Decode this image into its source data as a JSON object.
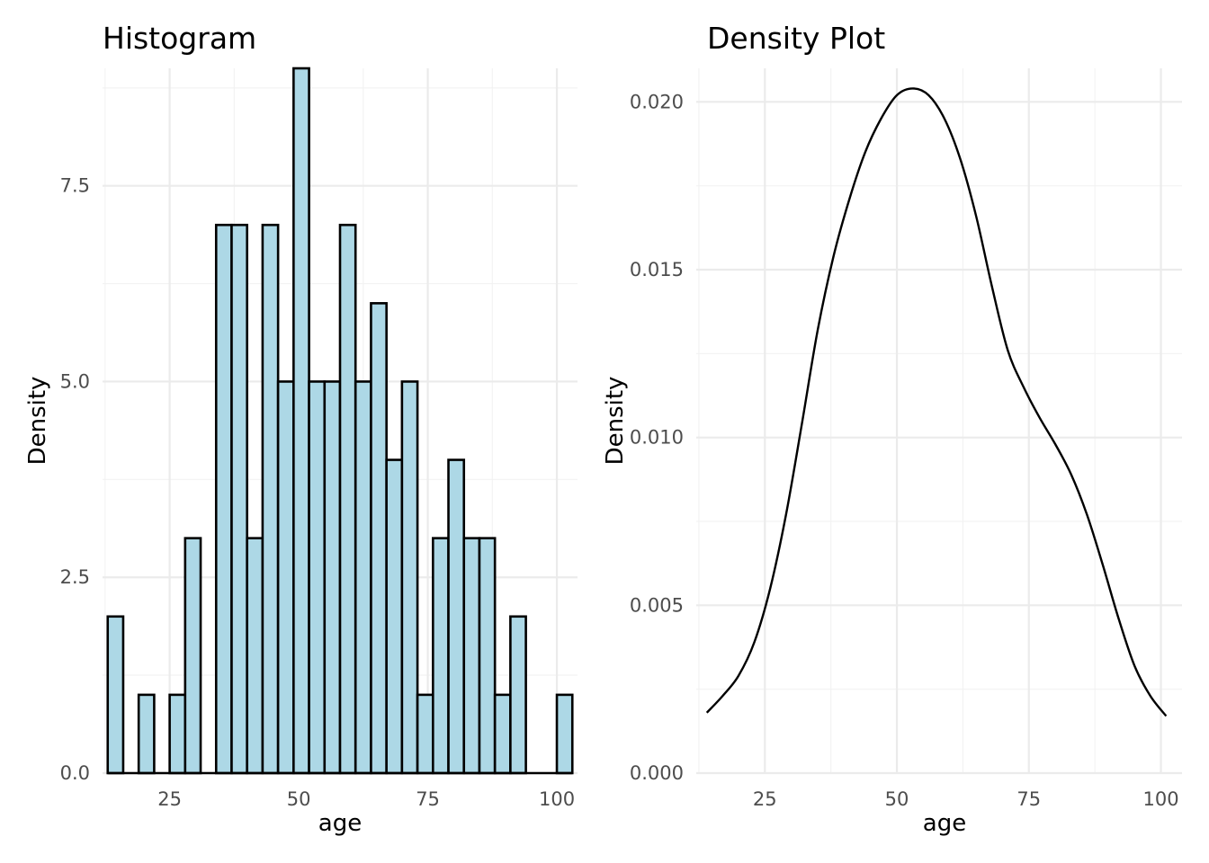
{
  "chart_data": [
    {
      "type": "bar",
      "title": "Histogram",
      "xlabel": "age",
      "ylabel": "Density",
      "xlim": [
        12,
        104
      ],
      "ylim": [
        0,
        9
      ],
      "x_ticks": [
        25,
        50,
        75,
        100
      ],
      "y_ticks": [
        0.0,
        2.5,
        5.0,
        7.5
      ],
      "y_tick_labels": [
        "0.0",
        "2.5",
        "5.0",
        "7.5"
      ],
      "grid": true,
      "fill_color": "#add8e6",
      "edge_color": "#000000",
      "bin_width": 3,
      "bin_starts": [
        13,
        16,
        19,
        22,
        25,
        28,
        31,
        34,
        37,
        40,
        43,
        46,
        49,
        52,
        55,
        58,
        61,
        64,
        67,
        70,
        73,
        76,
        79,
        82,
        85,
        88,
        91,
        94,
        97,
        100
      ],
      "values": [
        2,
        0,
        1,
        0,
        1,
        3,
        0,
        7,
        7,
        3,
        7,
        5,
        9,
        5,
        5,
        7,
        5,
        6,
        4,
        5,
        1,
        3,
        4,
        3,
        3,
        1,
        2,
        0,
        0,
        1
      ]
    },
    {
      "type": "line",
      "title": "Density Plot",
      "xlabel": "age",
      "ylabel": "Density",
      "xlim": [
        12,
        104
      ],
      "ylim": [
        0,
        0.021
      ],
      "x_ticks": [
        25,
        50,
        75,
        100
      ],
      "y_ticks": [
        0.0,
        0.005,
        0.01,
        0.015,
        0.02
      ],
      "y_tick_labels": [
        "0.000",
        "0.005",
        "0.010",
        "0.015",
        "0.020"
      ],
      "grid": true,
      "line_color": "#000000",
      "x": [
        14,
        17,
        20,
        23,
        26,
        29,
        32,
        35,
        38,
        41,
        44,
        47,
        50,
        53,
        56,
        59,
        62,
        65,
        68,
        71,
        74,
        77,
        80,
        83,
        86,
        89,
        92,
        95,
        98,
        101
      ],
      "y": [
        0.0018,
        0.0023,
        0.0029,
        0.0039,
        0.0055,
        0.0077,
        0.0104,
        0.0132,
        0.0154,
        0.0171,
        0.0185,
        0.0195,
        0.0202,
        0.0204,
        0.0202,
        0.0195,
        0.0183,
        0.0166,
        0.0145,
        0.0126,
        0.0115,
        0.0106,
        0.0098,
        0.0089,
        0.0077,
        0.0062,
        0.0046,
        0.0032,
        0.0023,
        0.0017
      ]
    }
  ]
}
